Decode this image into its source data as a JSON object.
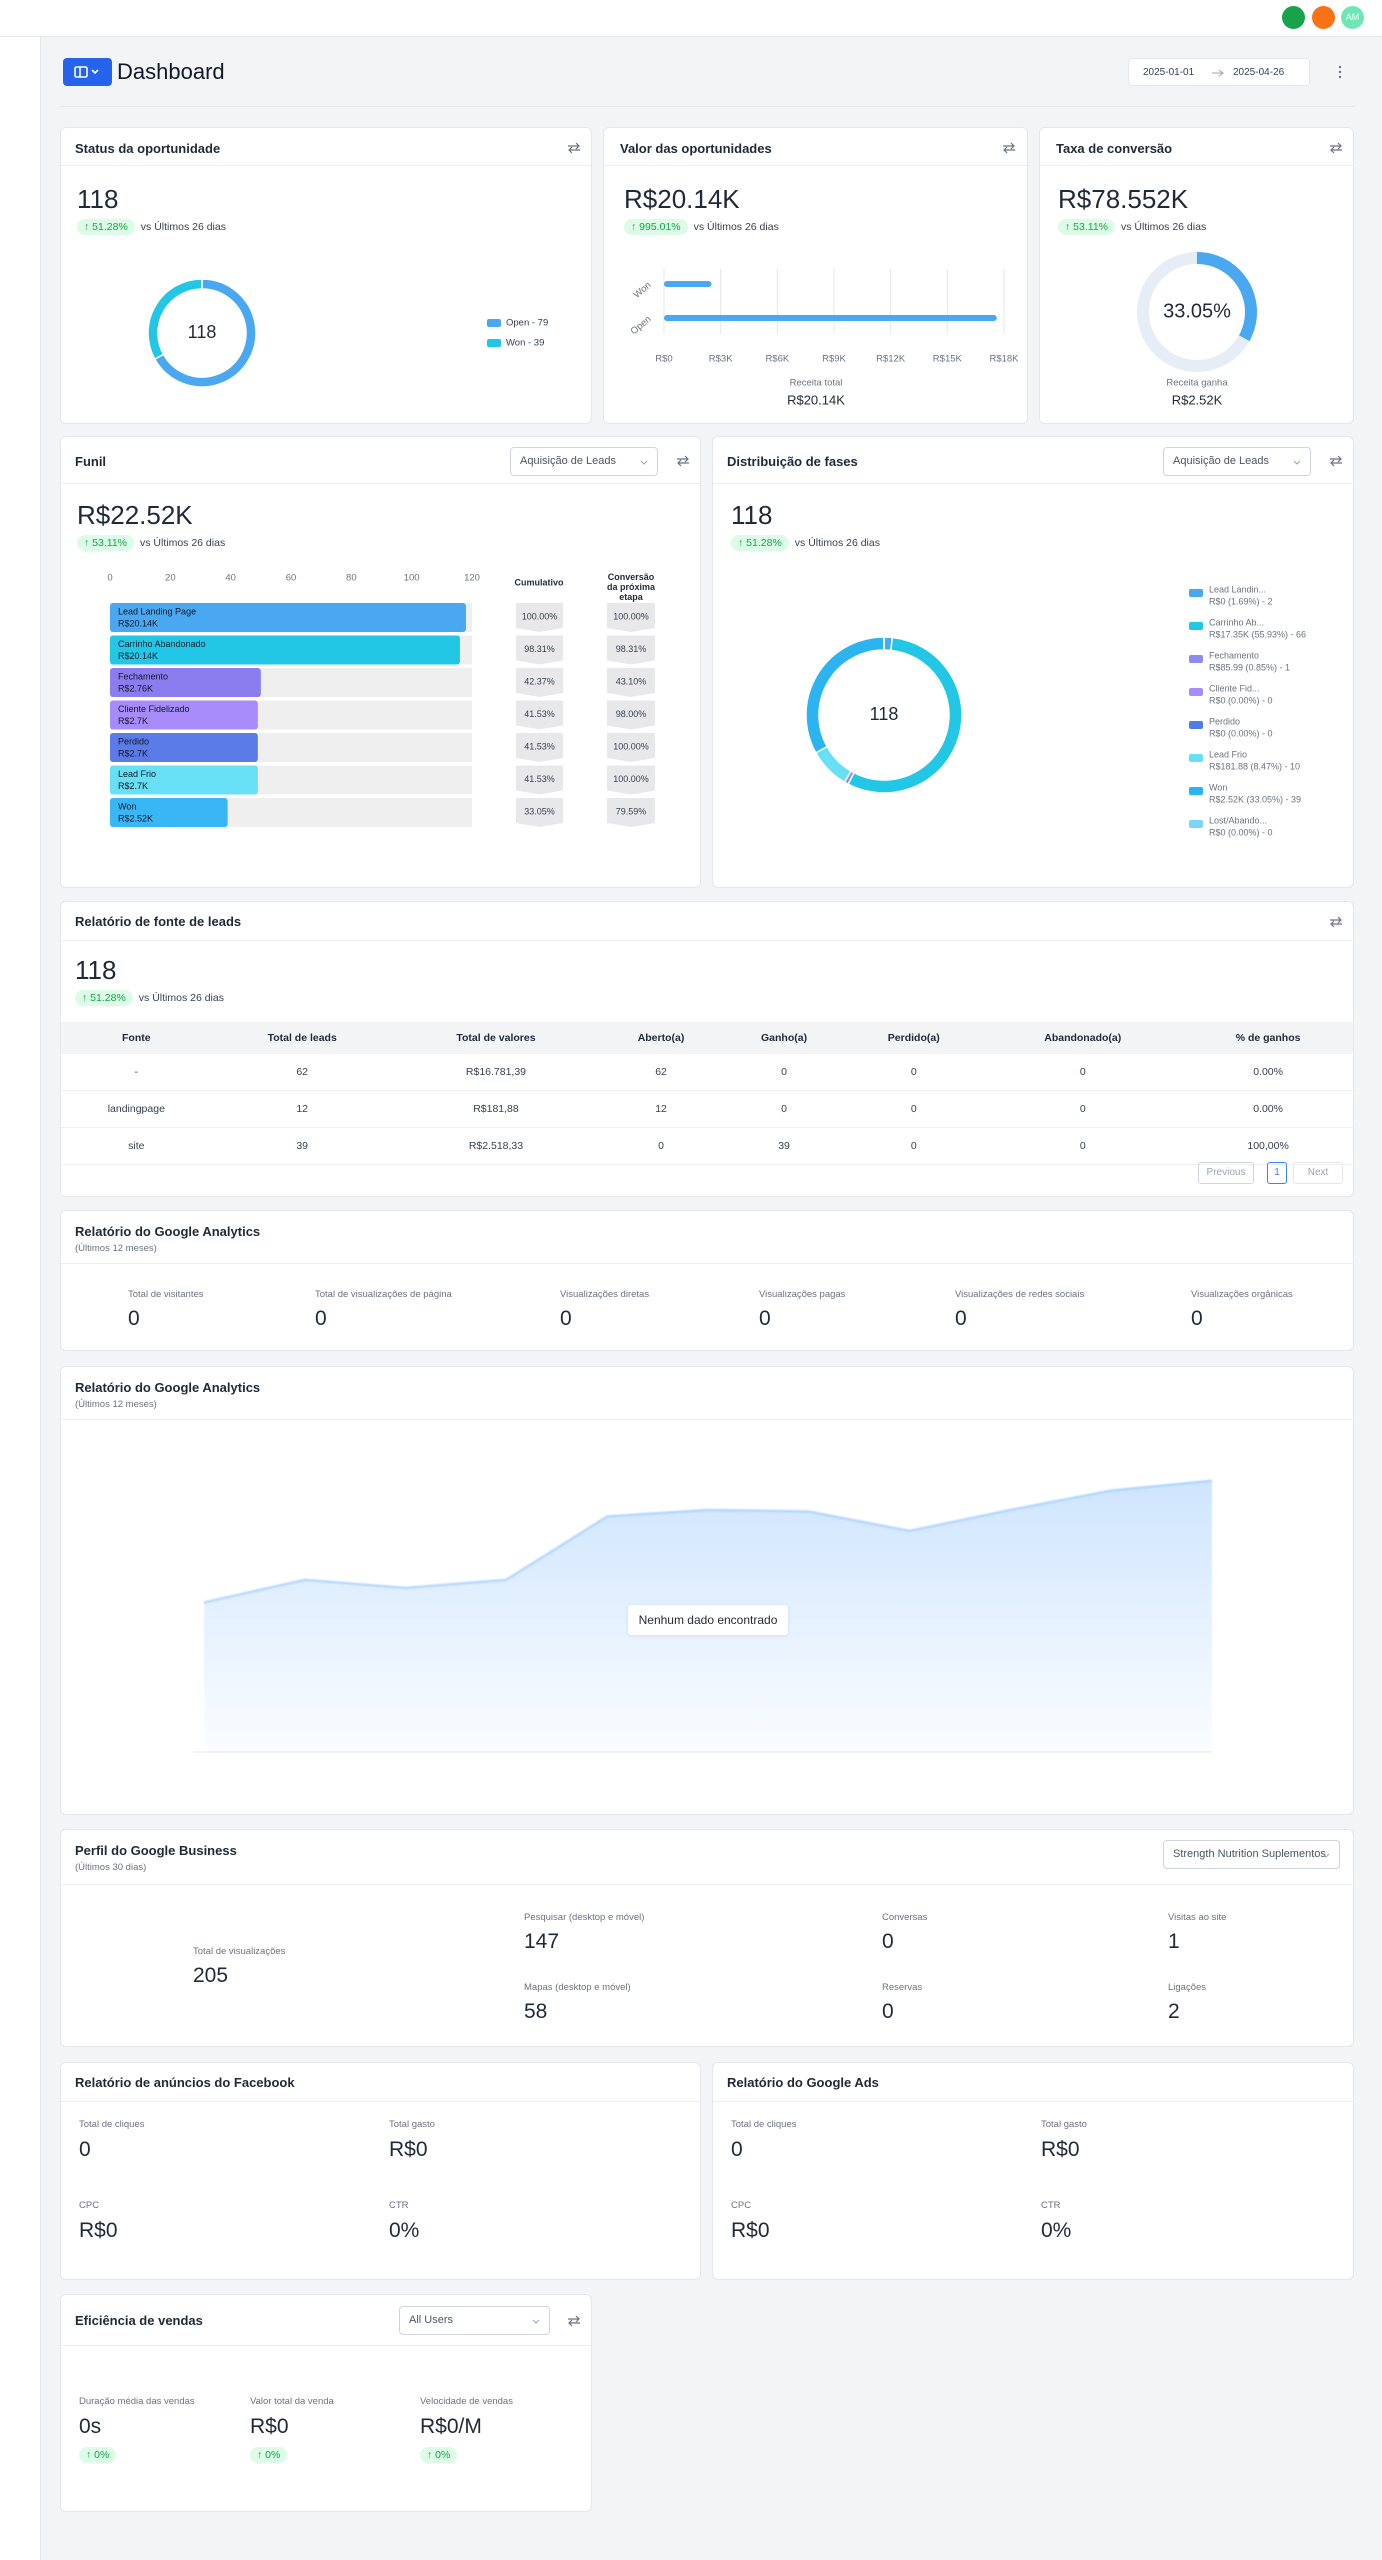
{
  "topbar": {
    "avatar": "AM"
  },
  "header": {
    "title": "Dashboard",
    "date_start": "2025-01-01",
    "date_end": "2025-04-26"
  },
  "status": {
    "title": "Status da oportunidade",
    "value": "118",
    "change": "↑ 51.28%",
    "period": "vs Últimos 26 dias",
    "chart_data": {
      "type": "donut",
      "center_label": "118",
      "legend_labels": [
        "Open - 79",
        "Won - 39"
      ],
      "values": [
        79,
        39
      ],
      "colors": [
        "#4aa8f0",
        "#22c7e6"
      ]
    }
  },
  "value_card": {
    "title": "Valor das oportunidades",
    "value": "R$20.14K",
    "change": "↑ 995.01%",
    "period": "vs Últimos 26 dias",
    "chart_data": {
      "type": "hbar",
      "categories": [
        "Won",
        "Open"
      ],
      "values": [
        2518.33,
        17620
      ],
      "color": "#4aa8f0",
      "xlim": [
        0,
        18000
      ],
      "xticks": [
        {
          "value": 0,
          "label": "R$0"
        },
        {
          "value": 3000,
          "label": "R$3K"
        },
        {
          "value": 6000,
          "label": "R$6K"
        },
        {
          "value": 9000,
          "label": "R$9K"
        },
        {
          "value": 12000,
          "label": "R$12K"
        },
        {
          "value": 15000,
          "label": "R$15K"
        },
        {
          "value": 18000,
          "label": "R$18K"
        }
      ],
      "grid": true,
      "xlabel": "Receita total",
      "total": "R$20.14K"
    }
  },
  "conversion": {
    "title": "Taxa de conversão",
    "value": "R$78.552K",
    "change": "↑ 53.11%",
    "period": "vs Últimos 26 dias",
    "chart_data": {
      "type": "gauge",
      "value": 33.05,
      "value_label": "33.05%",
      "range": [
        0,
        100
      ],
      "color": "#4aa8f0",
      "track_color": "#e6edf7",
      "caption": "Receita ganha",
      "caption_value": "R$2.52K"
    }
  },
  "funnel": {
    "title": "Funil",
    "select": "Aquisição de Leads",
    "value": "R$22.52K",
    "change": "↑ 53.11%",
    "period": "vs Últimos 26 dias",
    "chart_data": {
      "type": "funnel",
      "categories": [
        "Lead Landing Page",
        "Carrinho Abandonado",
        "Fechamento",
        "Cliente Fidelizado",
        "Perdido",
        "Lead Frio",
        "Won"
      ],
      "values": [
        118,
        116,
        50,
        49,
        49,
        49,
        39
      ],
      "revenue_labels": [
        "R$20.14K",
        "R$20.14K",
        "R$2.76K",
        "R$2.7K",
        "R$2.7K",
        "R$2.7K",
        "R$2.52K"
      ],
      "colors": [
        "#4aa8f0",
        "#22c7e6",
        "#8b7cf0",
        "#a78bfa",
        "#5b7ce8",
        "#67e0f5",
        "#38b6f5"
      ],
      "xlim": [
        0,
        120
      ],
      "xticks": [
        0,
        20,
        40,
        60,
        80,
        100,
        120
      ],
      "cumulative_header": "Cumulativo",
      "cumulative": [
        "100.00%",
        "98.31%",
        "42.37%",
        "41.53%",
        "41.53%",
        "41.53%",
        "33.05%"
      ],
      "conversion_header": "Conversão da próxima etapa",
      "conversion": [
        "100.00%",
        "98.31%",
        "43.10%",
        "98.00%",
        "100.00%",
        "100.00%",
        "79.59%"
      ]
    }
  },
  "distribution": {
    "title": "Distribuição de fases",
    "select": "Aquisição de Leads",
    "value": "118",
    "change": "↑ 51.28%",
    "period": "vs Últimos 26 dias",
    "chart_data": {
      "type": "donut",
      "center_label": "118",
      "categories": [
        "Lead Landin...",
        "Carrinho Ab...",
        "Fechamento",
        "Cliente Fid...",
        "Perdido",
        "Lead Frio",
        "Won",
        "Lost/Abando..."
      ],
      "legend_details": [
        "R$0 (1.69%) - 2",
        "R$17.35K (55.93%) - 66",
        "R$85.99 (0.85%) - 1",
        "R$0 (0.00%) - 0",
        "R$0 (0.00%) - 0",
        "R$181.88 (8.47%) - 10",
        "R$2.52K (33.05%) - 39",
        "R$0 (0.00%) - 0"
      ],
      "values": [
        2,
        66,
        1,
        0,
        0,
        10,
        39,
        0
      ],
      "colors": [
        "#4aa8f0",
        "#22c7e6",
        "#8b8cf0",
        "#a78bfa",
        "#4f7ce8",
        "#67e0f5",
        "#2bb4f0",
        "#7dd3fc"
      ]
    }
  },
  "leads_table": {
    "title": "Relatório de fonte de leads",
    "value": "118",
    "change": "↑ 51.28%",
    "period": "vs Últimos 26 dias",
    "columns": [
      "Fonte",
      "Total de leads",
      "Total de valores",
      "Aberto(a)",
      "Ganho(a)",
      "Perdido(a)",
      "Abandonado(a)",
      "% de ganhos"
    ],
    "rows": [
      [
        "-",
        "62",
        "R$16.781,39",
        "62",
        "0",
        "0",
        "0",
        "0.00%"
      ],
      [
        "landingpage",
        "12",
        "R$181,88",
        "12",
        "0",
        "0",
        "0",
        "0.00%"
      ],
      [
        "site",
        "39",
        "R$2.518,33",
        "0",
        "39",
        "0",
        "0",
        "100,00%"
      ]
    ],
    "pagination": {
      "previous": "Previous",
      "page": "1",
      "next": "Next"
    }
  },
  "analytics": {
    "title": "Relatório do Google Analytics",
    "subtitle": "(Últimos 12 meses)",
    "metrics": [
      {
        "label": "Total de visitantes",
        "value": "0"
      },
      {
        "label": "Total de visualizações de página",
        "value": "0"
      },
      {
        "label": "Visualizações diretas",
        "value": "0"
      },
      {
        "label": "Visualizações pagas",
        "value": "0"
      },
      {
        "label": "Visualizações de redes sociais",
        "value": "0"
      },
      {
        "label": "Visualizações orgânicas",
        "value": "0"
      }
    ]
  },
  "analytics_chart": {
    "title": "Relatório do Google Analytics",
    "subtitle": "(Últimos 12 meses)",
    "empty_message": "Nenhum dado encontrado",
    "chart_data": {
      "type": "area",
      "values": [
        548,
        631,
        601,
        631,
        863,
        887,
        881,
        810,
        887,
        958,
        994
      ],
      "ylim": [
        0,
        1000
      ],
      "color": "#93c5fd"
    }
  },
  "business": {
    "title": "Perfil do Google Business",
    "subtitle": "(Últimos 30 dias)",
    "select": "Strength Nutrition Suplementos",
    "metrics": [
      {
        "label": "Total de visualizações",
        "value": "205"
      },
      {
        "label": "Pesquisar (desktop e móvel)",
        "value": "147"
      },
      {
        "label": "Conversas",
        "value": "0"
      },
      {
        "label": "Visitas ao site",
        "value": "1"
      },
      {
        "label": "Mapas (desktop e móvel)",
        "value": "58"
      },
      {
        "label": "Reservas",
        "value": "0"
      },
      {
        "label": "Ligações",
        "value": "2"
      }
    ]
  },
  "facebook": {
    "title": "Relatório de anúncios do Facebook",
    "metrics": [
      {
        "label": "Total de cliques",
        "value": "0"
      },
      {
        "label": "Total gasto",
        "value": "R$0"
      },
      {
        "label": "CPC",
        "value": "R$0"
      },
      {
        "label": "CTR",
        "value": "0%"
      }
    ]
  },
  "google_ads": {
    "title": "Relatório do Google Ads",
    "metrics": [
      {
        "label": "Total de cliques",
        "value": "0"
      },
      {
        "label": "Total gasto",
        "value": "R$0"
      },
      {
        "label": "CPC",
        "value": "R$0"
      },
      {
        "label": "CTR",
        "value": "0%"
      }
    ]
  },
  "sales": {
    "title": "Eficiência de vendas",
    "select": "All Users",
    "metrics": [
      {
        "label": "Duração média das vendas",
        "value": "0s",
        "change": "↑ 0%"
      },
      {
        "label": "Valor total da venda",
        "value": "R$0",
        "change": "↑ 0%"
      },
      {
        "label": "Velocidade de vendas",
        "value": "R$0/M",
        "change": "↑ 0%"
      }
    ]
  }
}
